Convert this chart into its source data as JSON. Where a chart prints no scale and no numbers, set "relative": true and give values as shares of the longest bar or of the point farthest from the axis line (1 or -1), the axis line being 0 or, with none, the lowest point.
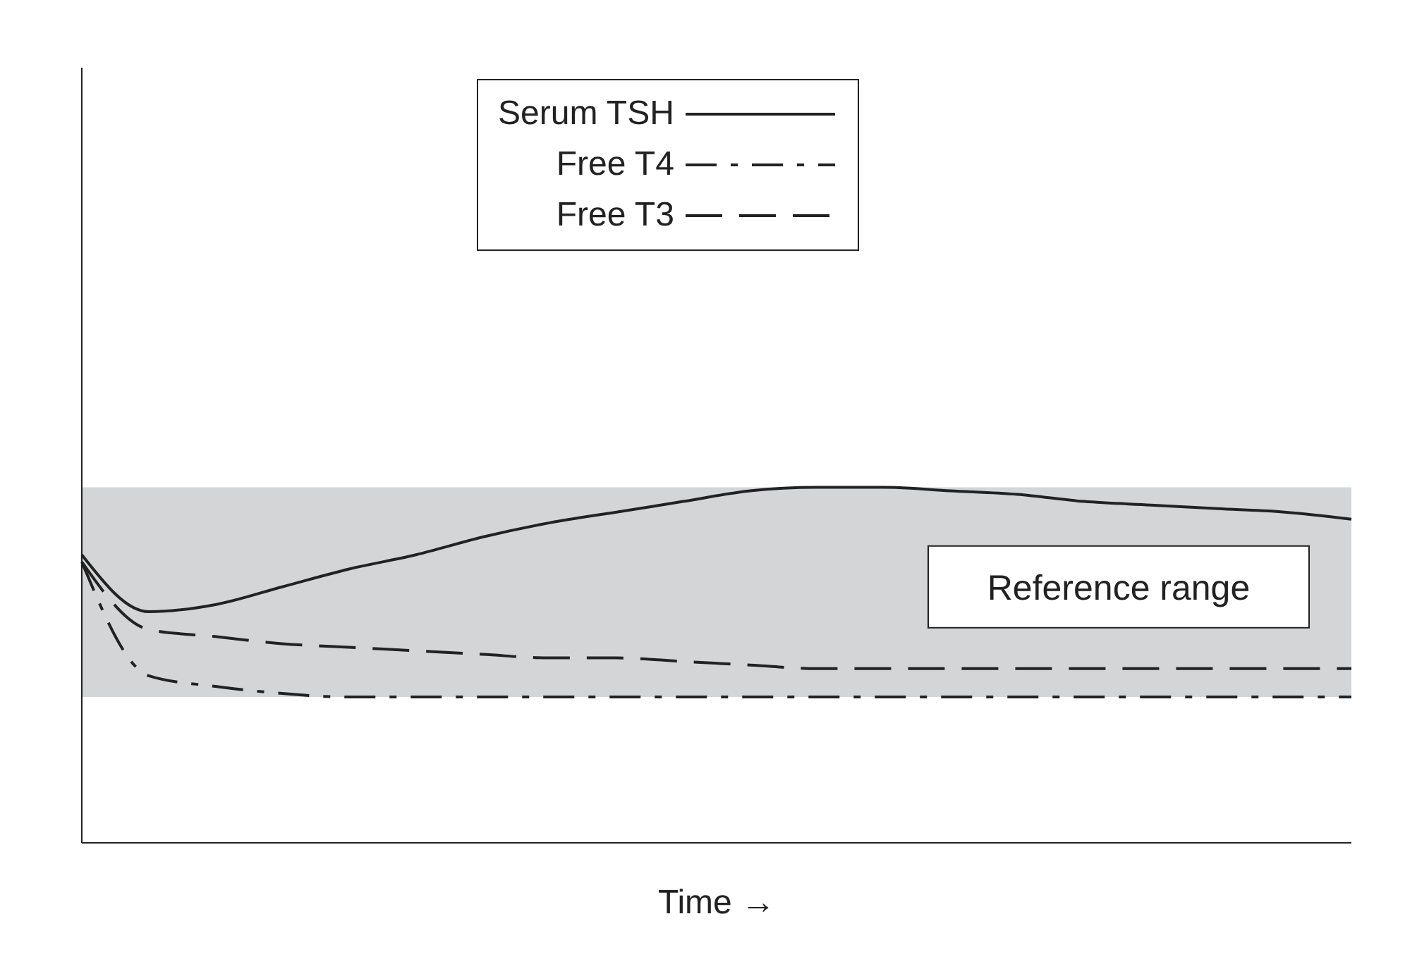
{
  "chart_data": {
    "type": "line",
    "relative": true,
    "xlabel": "Time →",
    "categories": [
      null,
      null,
      null,
      null,
      null,
      null,
      null,
      null,
      null,
      null,
      null,
      null,
      null,
      null,
      null,
      null,
      null,
      null,
      null,
      null
    ],
    "series": [
      {
        "name": "Serum TSH",
        "color": "#222222",
        "line_style": "solid",
        "values": [
          0.81,
          0.65,
          0.67,
          0.72,
          0.77,
          0.81,
          0.86,
          0.9,
          0.93,
          0.96,
          0.99,
          1,
          1,
          0.99,
          0.98,
          0.96,
          0.95,
          0.94,
          0.93,
          0.91
        ]
      },
      {
        "name": "Free T4",
        "color": "#222222",
        "line_style": "dashdot",
        "values": [
          0.79,
          0.47,
          0.44,
          0.42,
          0.41,
          0.41,
          0.41,
          0.41,
          0.41,
          0.41,
          0.41,
          0.41,
          0.41,
          0.41,
          0.41,
          0.41,
          0.41,
          0.41,
          0.41,
          0.41
        ]
      },
      {
        "name": "Free T3",
        "color": "#222222",
        "line_style": "dashed",
        "values": [
          0.79,
          0.6,
          0.58,
          0.56,
          0.55,
          0.54,
          0.53,
          0.52,
          0.52,
          0.51,
          0.5,
          0.49,
          0.49,
          0.49,
          0.49,
          0.49,
          0.49,
          0.49,
          0.49,
          0.49
        ]
      }
    ],
    "bands": [
      {
        "axis": "y",
        "from": 0.41,
        "to": 1,
        "label": "Reference range",
        "color": "#d4d5d7"
      }
    ],
    "legend": "top",
    "marker": "none"
  }
}
